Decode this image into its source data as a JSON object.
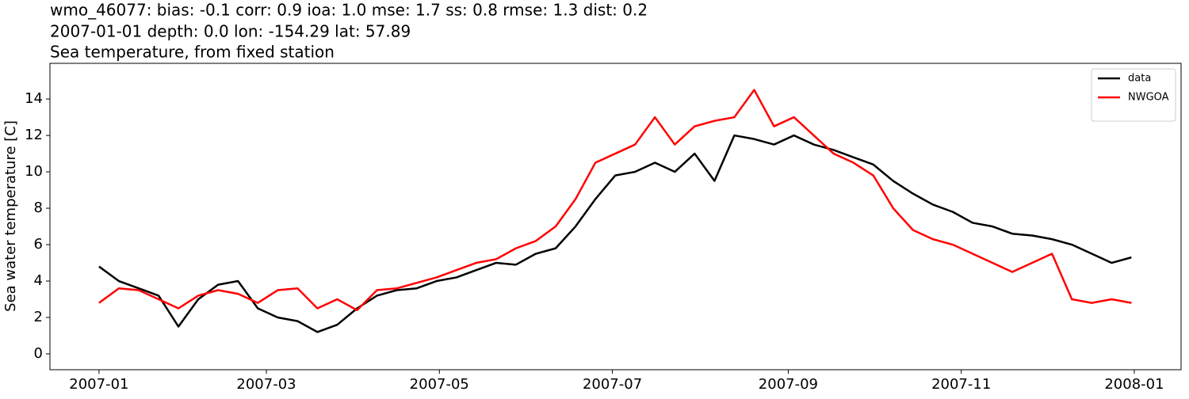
{
  "chart_data": {
    "type": "line",
    "title": "wmo_46077: bias: -0.1  corr: 0.9  ioa: 1.0  mse: 1.7  ss: 0.8  rmse: 1.3  dist: 0.2",
    "subtitle": "2007-01-01 depth: 0.0 lon: -154.29 lat: 57.89",
    "subtitle2": "Sea temperature, from fixed station",
    "y_label": "Sea water temperature [C]",
    "x": [
      0,
      7,
      14,
      21,
      28,
      35,
      42,
      49,
      56,
      63,
      70,
      77,
      84,
      91,
      98,
      105,
      112,
      119,
      126,
      133,
      140,
      147,
      154,
      161,
      168,
      175,
      182,
      189,
      196,
      203,
      210,
      217,
      224,
      231,
      238,
      245,
      252,
      259,
      266,
      273,
      280,
      287,
      294,
      301,
      308,
      315,
      322,
      329,
      336,
      343,
      350,
      357,
      364
    ],
    "series": [
      {
        "name": "data",
        "color": "#000000",
        "values": [
          4.8,
          4.0,
          3.6,
          3.2,
          1.5,
          3.0,
          3.8,
          4.0,
          2.5,
          2.0,
          1.8,
          1.2,
          1.6,
          2.5,
          3.2,
          3.5,
          3.6,
          4.0,
          4.2,
          4.6,
          5.0,
          4.9,
          5.5,
          5.8,
          7.0,
          8.5,
          9.8,
          10.0,
          10.5,
          10.0,
          11.0,
          9.5,
          12.0,
          11.8,
          11.5,
          12.0,
          11.5,
          11.2,
          10.8,
          10.4,
          9.5,
          8.8,
          8.2,
          7.8,
          7.2,
          7.0,
          6.6,
          6.5,
          6.3,
          6.0,
          5.5,
          5.0,
          5.3
        ]
      },
      {
        "name": "NWGOA",
        "color": "#ff0000",
        "values": [
          2.8,
          3.6,
          3.5,
          3.0,
          2.5,
          3.2,
          3.5,
          3.3,
          2.8,
          3.5,
          3.6,
          2.5,
          3.0,
          2.4,
          3.5,
          3.6,
          3.9,
          4.2,
          4.6,
          5.0,
          5.2,
          5.8,
          6.2,
          7.0,
          8.5,
          10.5,
          11.0,
          11.5,
          13.0,
          11.5,
          12.5,
          12.8,
          13.0,
          14.5,
          12.5,
          13.0,
          12.0,
          11.0,
          10.5,
          9.8,
          8.0,
          6.8,
          6.3,
          6.0,
          5.5,
          5.0,
          4.5,
          5.0,
          5.5,
          3.0,
          2.8,
          3.0,
          2.8
        ]
      }
    ],
    "xlim": [
      -17.3,
      381.5
    ],
    "xticks": [
      {
        "value": 0,
        "label": "2007-01"
      },
      {
        "value": 59,
        "label": "2007-03"
      },
      {
        "value": 120,
        "label": "2007-05"
      },
      {
        "value": 181,
        "label": "2007-07"
      },
      {
        "value": 243,
        "label": "2007-09"
      },
      {
        "value": 304,
        "label": "2007-11"
      },
      {
        "value": 365,
        "label": "2008-01"
      }
    ],
    "ylim": [
      -0.87,
      15.96
    ],
    "yticks": [
      0,
      2,
      4,
      6,
      8,
      10,
      12,
      14
    ],
    "legend": "upper right"
  }
}
